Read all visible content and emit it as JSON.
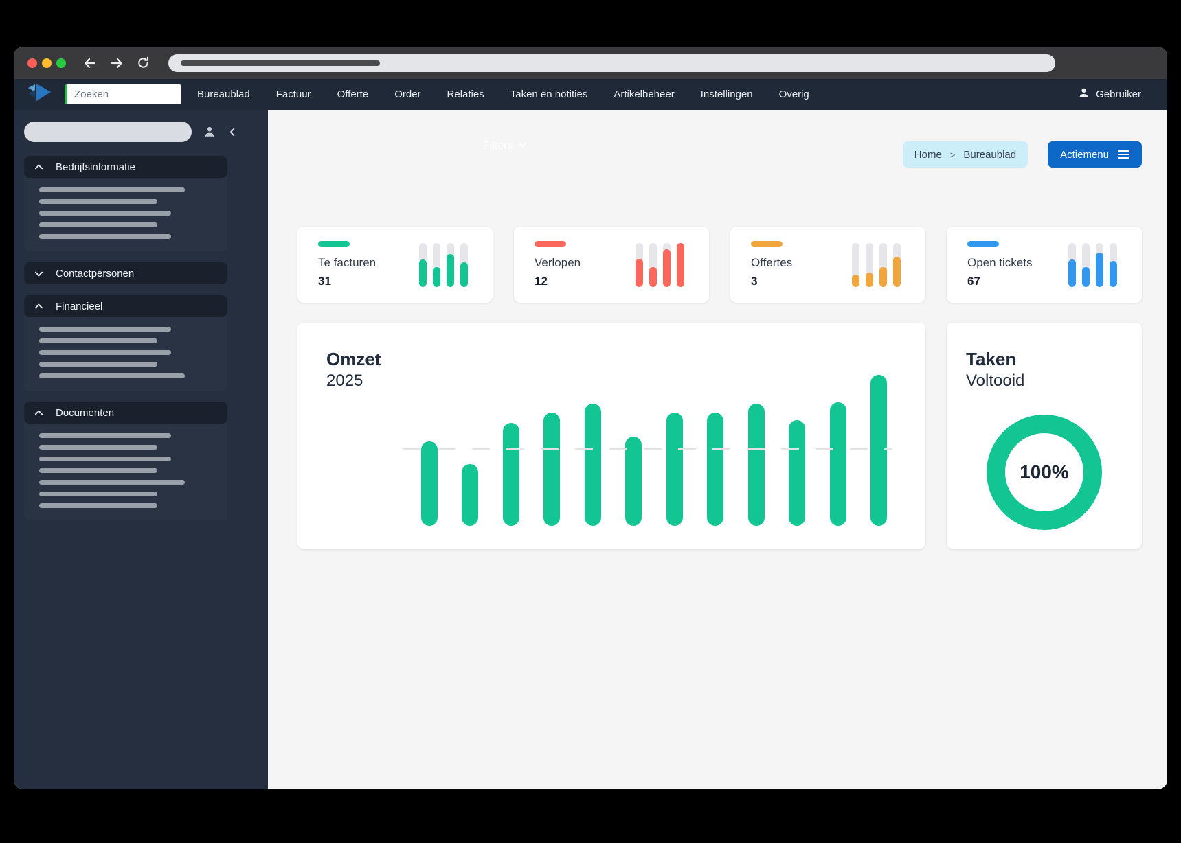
{
  "theme": {
    "green": "#12c592",
    "red": "#fa685d",
    "orange": "#f0a63c",
    "blue": "#3297ef",
    "navbar_bg": "#1f2937",
    "sidebar_bg": "#262f3f",
    "action_button_bg": "#0e68c7",
    "breadcrumb_bg": "#cbeef9",
    "traffic_lights": [
      "#ff5f57",
      "#febc2e",
      "#28c840"
    ]
  },
  "browser": {
    "traffic_lights": [
      "close",
      "minimize",
      "maximize"
    ],
    "buttons": [
      "back",
      "forward",
      "reload"
    ]
  },
  "navbar": {
    "logo": "app-logo",
    "search_placeholder": "Zoeken",
    "items": [
      "Bureaublad",
      "Factuur",
      "Offerte",
      "Order",
      "Relaties",
      "Taken en notities",
      "Artikelbeheer",
      "Instellingen",
      "Overig"
    ],
    "user_label": "Gebruiker",
    "user_icon": "person-icon"
  },
  "sidebar": {
    "top_icons": [
      "person-icon",
      "chevron-left-icon"
    ],
    "sections": [
      {
        "label": "Bedrijfsinformatie",
        "expanded": true,
        "icon": "chevron-up-icon",
        "skeleton_widths": [
          212,
          172,
          192,
          172,
          192
        ]
      },
      {
        "label": "Contactpersonen",
        "expanded": false,
        "icon": "chevron-down-icon",
        "skeleton_widths": []
      },
      {
        "label": "Financieel",
        "expanded": true,
        "icon": "chevron-up-icon",
        "skeleton_widths": [
          192,
          172,
          192,
          172,
          212
        ]
      },
      {
        "label": "Documenten",
        "expanded": true,
        "icon": "chevron-up-icon",
        "skeleton_widths": [
          192,
          172,
          192,
          172,
          212,
          172,
          172
        ]
      }
    ]
  },
  "topbar": {
    "filters_label": "Filters",
    "filters_icon": "chevron-down-icon",
    "breadcrumb": [
      "Home",
      "Bureaublad"
    ],
    "breadcrumb_separator": ">",
    "action_button": "Actiemenu",
    "action_button_icon": "hamburger-icon"
  },
  "stat_cards": [
    {
      "label": "Te facturen",
      "value": "31",
      "color": "#12c592",
      "bar_fill_pct": [
        62,
        44,
        75,
        55
      ]
    },
    {
      "label": "Verlopen",
      "value": "12",
      "color": "#fa685d",
      "bar_fill_pct": [
        63,
        45,
        85,
        100
      ]
    },
    {
      "label": "Offertes",
      "value": "3",
      "color": "#f0a63c",
      "bar_fill_pct": [
        28,
        32,
        44,
        68
      ]
    },
    {
      "label": "Open tickets",
      "value": "67",
      "color": "#3297ef",
      "bar_fill_pct": [
        62,
        45,
        78,
        58
      ]
    }
  ],
  "chart_data": [
    {
      "type": "bar",
      "title": "Omzet",
      "subtitle": "2025",
      "categories": [
        "",
        "",
        "",
        "",
        "",
        "",
        "",
        "",
        "",
        "",
        "",
        ""
      ],
      "values_pct_of_max": [
        56,
        41,
        68,
        75,
        81,
        59,
        75,
        75,
        81,
        70,
        82,
        100
      ],
      "bar_color": "#12c592",
      "xlabel": "",
      "ylabel": "",
      "grid": "single dashed horizontal reference line",
      "gridline_pct_of_max": 50,
      "legend": "none"
    },
    {
      "type": "pie",
      "title": "Taken",
      "subtitle": "Voltooid",
      "center_label": "100%",
      "value_pct": 100,
      "ring_color": "#12c592",
      "legend": "none"
    }
  ]
}
